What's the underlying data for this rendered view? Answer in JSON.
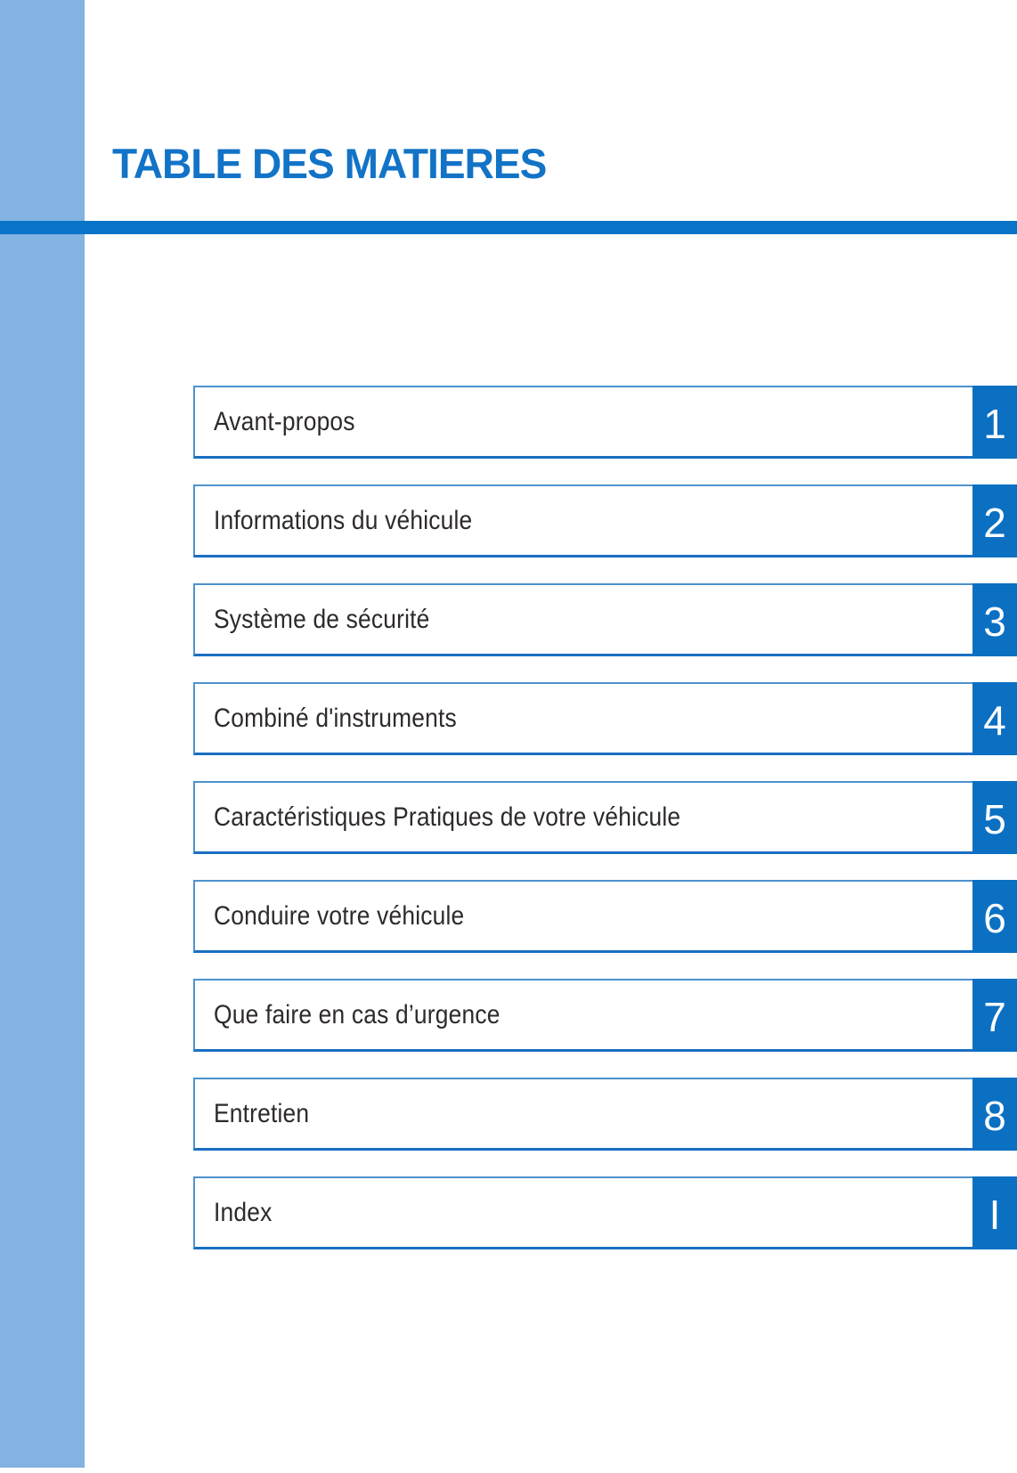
{
  "page": {
    "title": "TABLE DES MATIERES"
  },
  "colors": {
    "sidebar_accent": "#82B3E1",
    "header_bar": "#0973C8",
    "title_text": "#1273C7",
    "box_border_light": "#4D92CE",
    "box_border_bottom": "#1A6FC2",
    "chapter_tab": "#0B70C2",
    "item_text": "#2E2A2B"
  },
  "toc": {
    "items": [
      {
        "label": "Avant-propos",
        "tab": "1"
      },
      {
        "label": "Informations du véhicule",
        "tab": "2"
      },
      {
        "label": "Système de sécurité",
        "tab": "3"
      },
      {
        "label": "Combiné d'instruments",
        "tab": "4"
      },
      {
        "label": "Caractéristiques Pratiques de votre véhicule",
        "tab": "5"
      },
      {
        "label": "Conduire votre véhicule",
        "tab": "6"
      },
      {
        "label": "Que faire en cas d’urgence",
        "tab": "7"
      },
      {
        "label": "Entretien",
        "tab": "8"
      },
      {
        "label": "Index",
        "tab": "I"
      }
    ]
  }
}
